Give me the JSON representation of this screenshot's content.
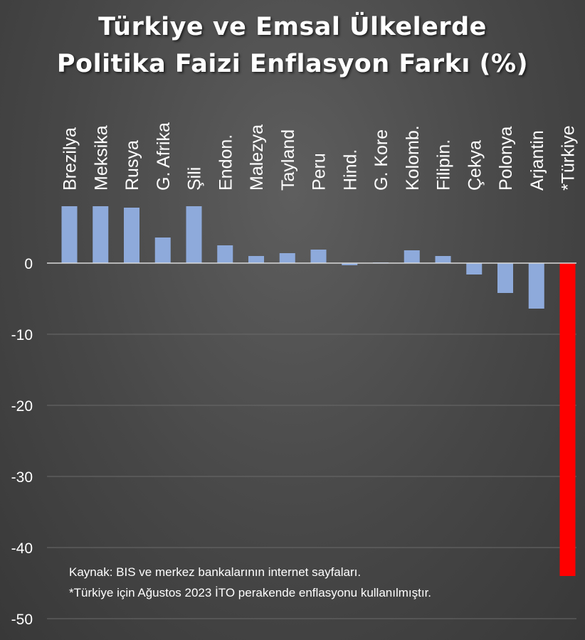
{
  "title": {
    "line1": "Türkiye ve Emsal Ülkelerde",
    "line2": "Politika Faizi Enflasyon Farkı (%)"
  },
  "notes": {
    "source": "Kaynak: BIS ve merkez bankalarının internet sayfaları.",
    "footnote": "*Türkiye için Ağustos 2023 İTO perakende enflasyonu kullanılmıştır."
  },
  "colors": {
    "bar": "#8eaadb",
    "highlight": "#ff0000",
    "gridline": "#6a6a6a",
    "zero_line": "#d9d9d9",
    "text": "#ffffff"
  },
  "chart_data": {
    "type": "bar",
    "categories": [
      "Brezilya",
      "Meksika",
      "Rusya",
      "G. Afrika",
      "Şili",
      "Endon.",
      "Malezya",
      "Tayland",
      "Peru",
      "Hind.",
      "G. Kore",
      "Kolomb.",
      "Filipin.",
      "Çekya",
      "Polonya",
      "Arjantin",
      "*Türkiye"
    ],
    "values": [
      8.0,
      8.0,
      7.8,
      3.6,
      8.0,
      2.5,
      1.0,
      1.4,
      1.9,
      -0.3,
      0.1,
      1.8,
      1.0,
      -1.6,
      -4.2,
      -6.4,
      -44.0
    ],
    "highlight_index": 16,
    "ylim": [
      -50,
      8
    ],
    "yticks": [
      0,
      -10,
      -20,
      -30,
      -40,
      -50
    ],
    "grid": true,
    "xlabel": "",
    "ylabel": ""
  }
}
